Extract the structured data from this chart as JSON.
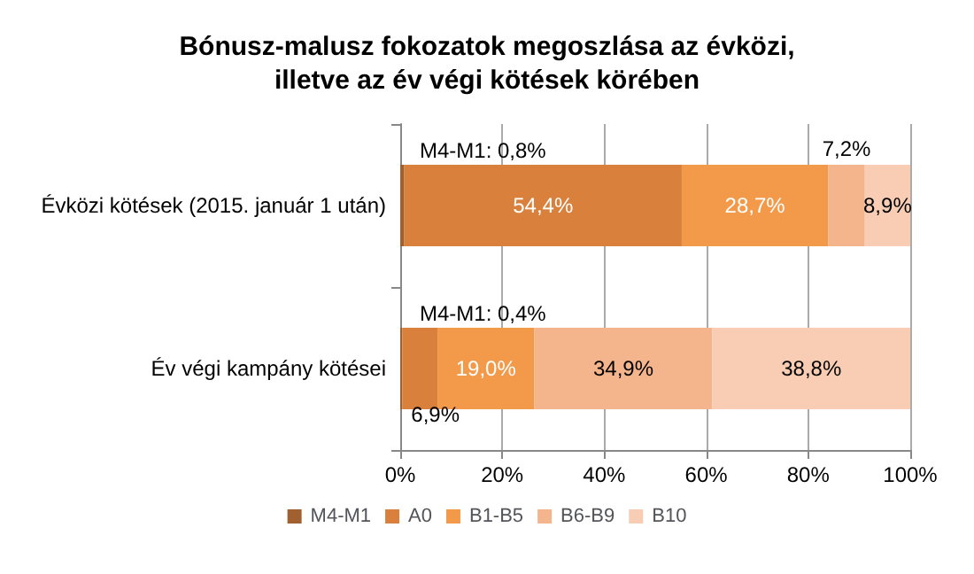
{
  "chart_data": {
    "type": "bar",
    "orientation": "horizontal",
    "stacked": true,
    "title": "Bónusz-malusz fokozatok megoszlása az évközi,\nilletve az év végi kötések körében",
    "categories": [
      "Évközi kötések (2015. január 1 után)",
      "Év végi kampány kötései"
    ],
    "series": [
      {
        "name": "M4-M1",
        "color": "#a0602f",
        "values": [
          0.8,
          0.4
        ],
        "value_labels": [
          "M4-M1: 0,8%",
          "M4-M1: 0,4%"
        ]
      },
      {
        "name": "A0",
        "color": "#d9803c",
        "values": [
          54.4,
          6.9
        ],
        "value_labels": [
          "54,4%",
          "6,9%"
        ]
      },
      {
        "name": "B1-B5",
        "color": "#f39a4a",
        "values": [
          28.7,
          19.0
        ],
        "value_labels": [
          "28,7%",
          "19,0%"
        ]
      },
      {
        "name": "B6-B9",
        "color": "#f4b48c",
        "values": [
          7.2,
          34.9
        ],
        "value_labels": [
          "7,2%",
          "34,9%"
        ]
      },
      {
        "name": "B10",
        "color": "#f8cdb4",
        "values": [
          8.9,
          38.8
        ],
        "value_labels": [
          "8,9%",
          "38,8%"
        ]
      }
    ],
    "xlim": [
      0,
      100
    ],
    "xticks": [
      {
        "value": 0,
        "label": "0%"
      },
      {
        "value": 20,
        "label": "20%"
      },
      {
        "value": 40,
        "label": "40%"
      },
      {
        "value": 60,
        "label": "60%"
      },
      {
        "value": 80,
        "label": "80%"
      },
      {
        "value": 100,
        "label": "100%"
      }
    ],
    "grid": "x",
    "legend": "bottom"
  }
}
